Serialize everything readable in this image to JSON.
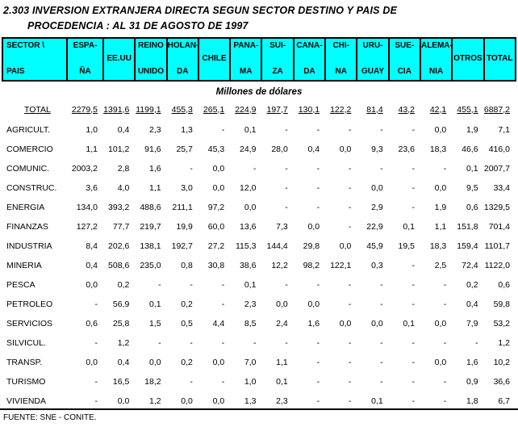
{
  "title": {
    "line1": "2.303  INVERSION EXTRANJERA DIRECTA SEGUN  SECTOR DESTINO Y PAIS DE",
    "line2": "PROCEDENCIA : AL 31 DE AGOSTO DE 1997"
  },
  "subtitle": "Millones de dólares",
  "colors": {
    "header_bg": "#00ffff",
    "border": "#000000",
    "text": "#000000"
  },
  "table": {
    "corner": {
      "l1": "SECTOR \\",
      "l2": "PAIS"
    },
    "columns": [
      {
        "l1": "ESPA-",
        "l2": "ÑA"
      },
      {
        "l1": "EE.UU",
        "l2": ""
      },
      {
        "l1": "REINO",
        "l2": "UNIDO"
      },
      {
        "l1": "HOLAN-",
        "l2": "DA"
      },
      {
        "l1": "CHILE",
        "l2": ""
      },
      {
        "l1": "PANA-",
        "l2": "MA"
      },
      {
        "l1": "SUI-",
        "l2": "ZA"
      },
      {
        "l1": "CANA-",
        "l2": "DA"
      },
      {
        "l1": "CHI-",
        "l2": "NA"
      },
      {
        "l1": "URU-",
        "l2": "GUAY"
      },
      {
        "l1": "SUE-",
        "l2": "CIA"
      },
      {
        "l1": "ALEMA-",
        "l2": "NIA"
      },
      {
        "l1": "OTROS",
        "l2": ""
      },
      {
        "l1": "TOTAL",
        "l2": ""
      }
    ],
    "total_row": {
      "label": "TOTAL",
      "values": [
        "2279,5",
        "1391,6",
        "1199,1",
        "455,3",
        "265,1",
        "224,9",
        "197,7",
        "130,1",
        "122,2",
        "81,4",
        "43,2",
        "42,1",
        "455,1",
        "6887,2"
      ]
    },
    "rows": [
      {
        "label": "AGRICULT.",
        "values": [
          "1,0",
          "0,4",
          "2,3",
          "1,3",
          "-",
          "0,1",
          "-",
          "-",
          "-",
          "-",
          "-",
          "0,0",
          "1,9",
          "7,1"
        ]
      },
      {
        "label": "COMERCIO",
        "values": [
          "1,1",
          "101,2",
          "91,6",
          "25,7",
          "45,3",
          "24,9",
          "28,0",
          "0,4",
          "0,0",
          "9,3",
          "23,6",
          "18,3",
          "46,6",
          "416,0"
        ]
      },
      {
        "label": "COMUNIC.",
        "values": [
          "2003,2",
          "2,8",
          "1,6",
          "-",
          "0,0",
          "-",
          "-",
          "-",
          "-",
          "-",
          "-",
          "-",
          "0,1",
          "2007,7"
        ]
      },
      {
        "label": "CONSTRUC.",
        "values": [
          "3,6",
          "4,0",
          "1,1",
          "3,0",
          "0,0",
          "12,0",
          "-",
          "-",
          "-",
          "0,0",
          "-",
          "0,0",
          "9,5",
          "33,4"
        ]
      },
      {
        "label": "ENERGIA",
        "values": [
          "134,0",
          "393,2",
          "488,6",
          "211,1",
          "97,2",
          "0,0",
          "-",
          "-",
          "-",
          "2,9",
          "-",
          "1,9",
          "0,6",
          "1329,5"
        ]
      },
      {
        "label": "FINANZAS",
        "values": [
          "127,2",
          "77,7",
          "219,7",
          "19,9",
          "60,0",
          "13,6",
          "7,3",
          "0,0",
          "-",
          "22,9",
          "0,1",
          "1,1",
          "151,8",
          "701,4"
        ]
      },
      {
        "label": "INDUSTRIA",
        "values": [
          "8,4",
          "202,6",
          "138,1",
          "192,7",
          "27,2",
          "115,3",
          "144,4",
          "29,8",
          "0,0",
          "45,9",
          "19,5",
          "18,3",
          "159,4",
          "1101,7"
        ]
      },
      {
        "label": "MINERIA",
        "values": [
          "0,4",
          "508,6",
          "235,0",
          "0,8",
          "30,8",
          "38,6",
          "12,2",
          "98,2",
          "122,1",
          "0,3",
          "-",
          "2,5",
          "72,4",
          "1122,0"
        ]
      },
      {
        "label": "PESCA",
        "values": [
          "0,0",
          "0,2",
          "-",
          "-",
          "-",
          "0,1",
          "-",
          "-",
          "-",
          "-",
          "-",
          "-",
          "0,2",
          "0,6"
        ]
      },
      {
        "label": "PETROLEO",
        "values": [
          "-",
          "56,9",
          "0,1",
          "0,2",
          "-",
          "2,3",
          "0,0",
          "0,0",
          "-",
          "-",
          "-",
          "-",
          "0,4",
          "59,8"
        ]
      },
      {
        "label": "SERVICIOS",
        "values": [
          "0,6",
          "25,8",
          "1,5",
          "0,5",
          "4,4",
          "8,5",
          "2,4",
          "1,6",
          "0,0",
          "0,0",
          "0,1",
          "0,0",
          "7,9",
          "53,2"
        ]
      },
      {
        "label": "SILVICUL.",
        "values": [
          "-",
          "1,2",
          "-",
          "-",
          "-",
          "-",
          "-",
          "-",
          "-",
          "-",
          "-",
          "-",
          "-",
          "1,2"
        ]
      },
      {
        "label": "TRANSP.",
        "values": [
          "0,0",
          "0,4",
          "0,0",
          "0,2",
          "0,0",
          "7,0",
          "1,1",
          "-",
          "-",
          "-",
          "-",
          "0,0",
          "1,6",
          "10,2"
        ]
      },
      {
        "label": "TURISMO",
        "values": [
          "-",
          "16,5",
          "18,2",
          "-",
          "-",
          "1,0",
          "0,1",
          "-",
          "-",
          "-",
          "-",
          "-",
          "0,9",
          "36,6"
        ]
      },
      {
        "label": "VIVIENDA",
        "values": [
          "-",
          "0,0",
          "1,2",
          "0,0",
          "0,0",
          "1,3",
          "2,3",
          "-",
          "-",
          "0,1",
          "-",
          "-",
          "1,8",
          "6,7"
        ]
      }
    ]
  },
  "footer": "FUENTE: SNE - CONITE."
}
